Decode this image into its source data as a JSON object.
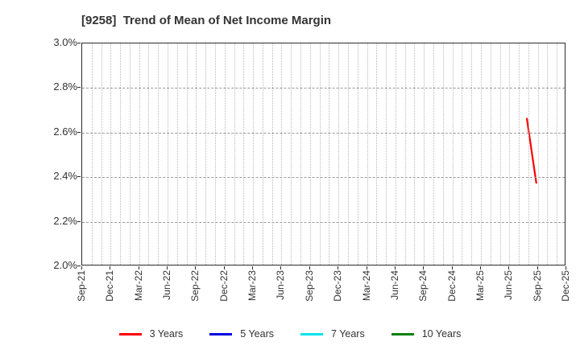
{
  "chart_data": {
    "type": "line",
    "title": "[9258]  Trend of Mean of Net Income Margin",
    "xlabel": "",
    "ylabel": "",
    "ylim": [
      2.0,
      3.0
    ],
    "y_tick_labels": [
      "2.0%",
      "2.2%",
      "2.4%",
      "2.6%",
      "2.8%",
      "3.0%"
    ],
    "x_start_month": "Sep-21",
    "x_end_month": "Dec-25",
    "x_tick_labels": [
      "Sep-21",
      "Dec-21",
      "Mar-22",
      "Jun-22",
      "Sep-22",
      "Dec-22",
      "Mar-23",
      "Jun-23",
      "Sep-23",
      "Dec-23",
      "Mar-24",
      "Jun-24",
      "Sep-24",
      "Dec-24",
      "Mar-25",
      "Jun-25",
      "Sep-25",
      "Dec-25"
    ],
    "grid": {
      "vertical": "monthly, dotted",
      "horizontal": "every 0.2%, dotted",
      "visible": true
    },
    "legend_position": "bottom-center",
    "series": [
      {
        "name": "3 Years",
        "color": "#ff0000",
        "points": [
          {
            "month": "Aug-25",
            "value": 2.66
          },
          {
            "month": "Sep-25",
            "value": 2.37
          }
        ]
      },
      {
        "name": "5 Years",
        "color": "#0000e0",
        "points": []
      },
      {
        "name": "7 Years",
        "color": "#00e5f0",
        "points": []
      },
      {
        "name": "10 Years",
        "color": "#0c800c",
        "points": []
      }
    ]
  }
}
